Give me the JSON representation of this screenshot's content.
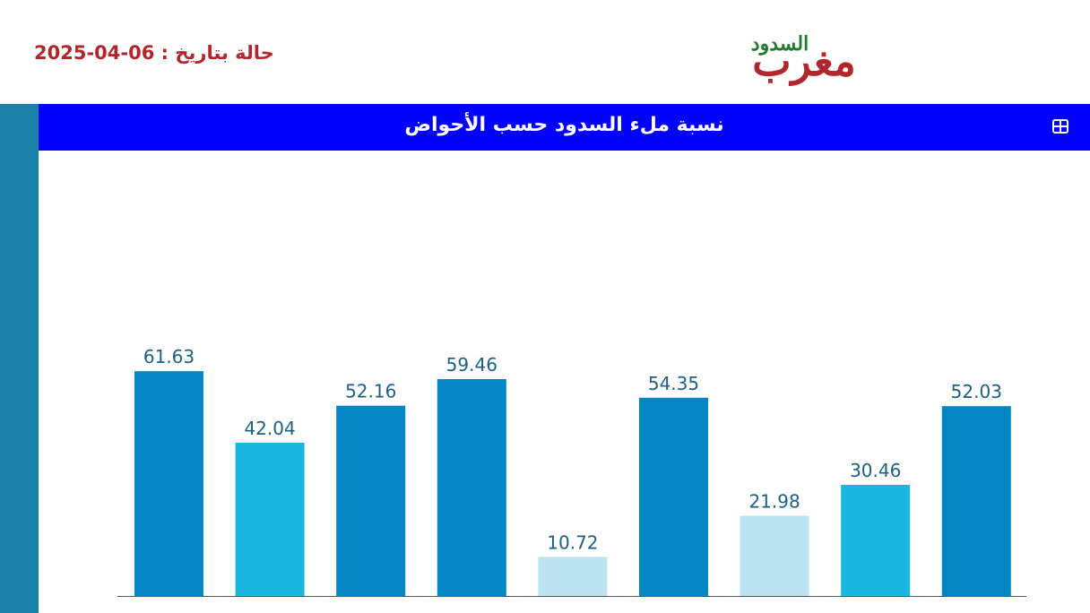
{
  "header": {
    "date_label": "حالة بتاريخ : 06-04-2025",
    "logo_text_main": "مغرب",
    "logo_text_sub": "السدود"
  },
  "title_bar": {
    "title": "نسبة ملء السدود حسب الأحواض",
    "table_icon": "table-grid-icon"
  },
  "colors": {
    "title_bar": "#0000ff",
    "side_strip": "#1a82a8",
    "date_text": "#b0262c",
    "bar_high": "#0087c3",
    "bar_mid": "#1ab8e0",
    "bar_low": "#bde3f0",
    "value_label": "#1e5f82"
  },
  "chart_data": {
    "type": "bar",
    "title": "نسبة ملء السدود حسب الأحواض",
    "categories": [
      "",
      "",
      "",
      "",
      "",
      "",
      "",
      "",
      ""
    ],
    "values": [
      61.63,
      42.04,
      52.16,
      59.46,
      10.72,
      54.35,
      21.98,
      30.46,
      52.03
    ],
    "value_labels": [
      "61.63",
      "42.04",
      "52.16",
      "59.46",
      "10.72",
      "54.35",
      "21.98",
      "30.46",
      "52.03"
    ],
    "color_levels": [
      "high",
      "mid",
      "high",
      "high",
      "low",
      "high",
      "low",
      "mid",
      "high"
    ],
    "ylim": [
      0,
      100
    ],
    "grid": false,
    "legend": "none"
  }
}
